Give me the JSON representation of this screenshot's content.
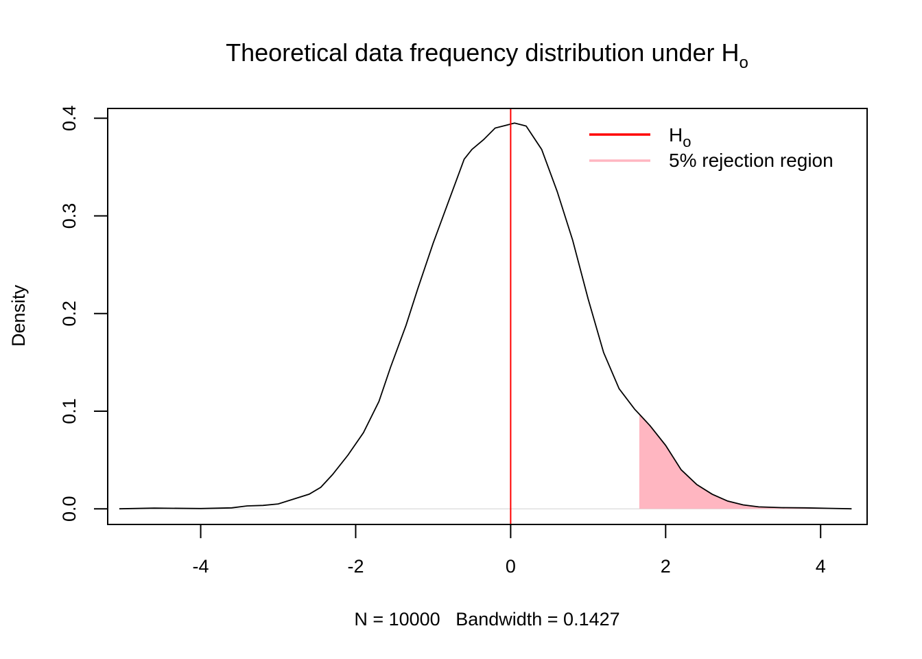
{
  "chart_data": {
    "type": "area",
    "title": "Theoretical data frequency distribution under H",
    "title_subscript": "o",
    "xlabel": "N = 10000   Bandwidth = 0.1427",
    "ylabel": "Density",
    "xlim": [
      -5.2,
      4.6
    ],
    "ylim": [
      -0.016,
      0.41
    ],
    "x_ticks": [
      -4,
      -2,
      0,
      2,
      4
    ],
    "x_tick_labels": [
      "-4",
      "-2",
      "0",
      "2",
      "4"
    ],
    "y_ticks": [
      0.0,
      0.1,
      0.2,
      0.3,
      0.4
    ],
    "y_tick_labels": [
      "0.0",
      "0.1",
      "0.2",
      "0.3",
      "0.4"
    ],
    "legend_position": "top-right",
    "legend": [
      {
        "label": "H",
        "subscript": "o",
        "color": "#ff0000"
      },
      {
        "label": "5% rejection region",
        "color": "#ffb6c1"
      }
    ],
    "reference_line": {
      "x": 0.0,
      "color": "#ff0000"
    },
    "rejection_region": {
      "from": 1.66,
      "color": "#ffb6c1"
    },
    "curve": {
      "color": "#000000",
      "x": [
        -5.05,
        -4.6,
        -4.0,
        -3.6,
        -3.4,
        -3.2,
        -3.0,
        -2.8,
        -2.6,
        -2.45,
        -2.3,
        -2.1,
        -1.9,
        -1.7,
        -1.55,
        -1.35,
        -1.2,
        -1.0,
        -0.8,
        -0.6,
        -0.5,
        -0.35,
        -0.2,
        -0.05,
        0.0,
        0.05,
        0.2,
        0.4,
        0.6,
        0.8,
        1.0,
        1.2,
        1.4,
        1.6,
        1.66,
        1.8,
        2.0,
        2.2,
        2.4,
        2.6,
        2.8,
        3.0,
        3.2,
        3.5,
        3.8,
        4.1,
        4.4
      ],
      "y": [
        0.0,
        0.0007,
        0.0003,
        0.001,
        0.003,
        0.0035,
        0.005,
        0.01,
        0.015,
        0.022,
        0.035,
        0.055,
        0.078,
        0.11,
        0.145,
        0.188,
        0.225,
        0.272,
        0.315,
        0.358,
        0.368,
        0.378,
        0.39,
        0.393,
        0.394,
        0.395,
        0.392,
        0.368,
        0.325,
        0.275,
        0.215,
        0.16,
        0.123,
        0.102,
        0.097,
        0.085,
        0.065,
        0.04,
        0.025,
        0.015,
        0.008,
        0.004,
        0.002,
        0.0012,
        0.001,
        0.0005,
        0.0
      ]
    }
  }
}
